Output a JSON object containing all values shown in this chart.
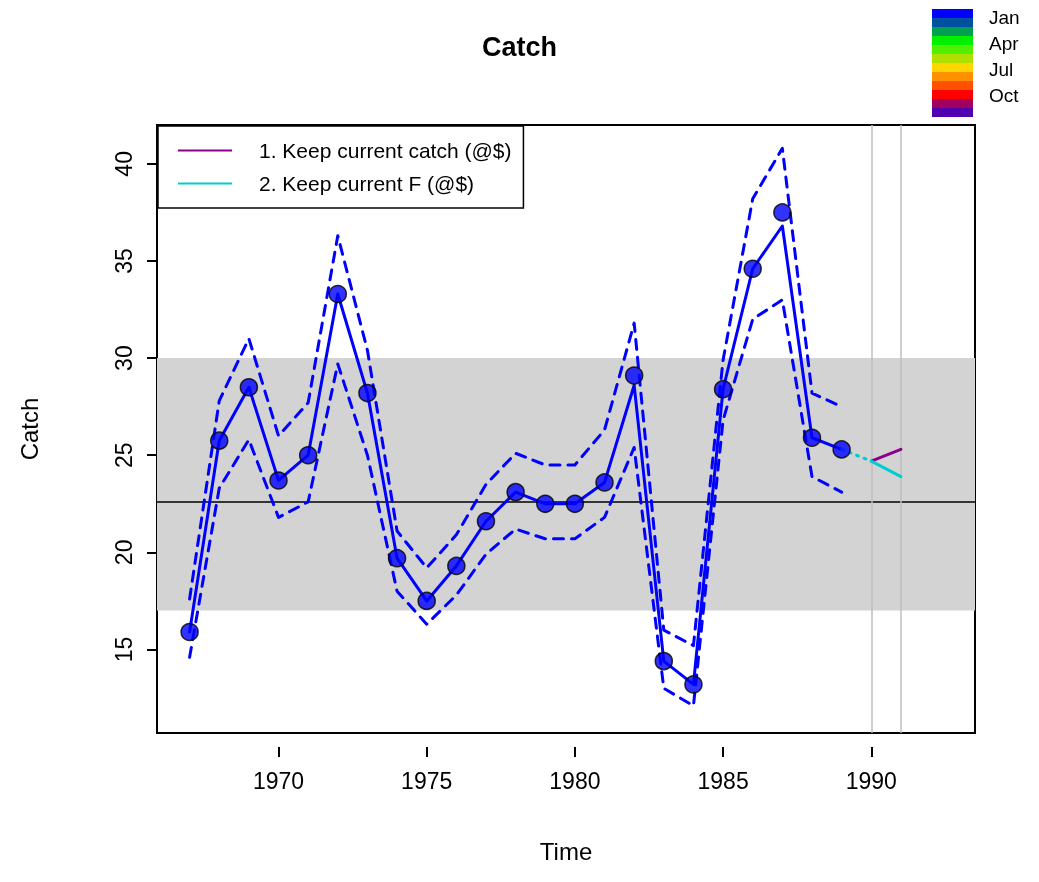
{
  "chart_data": {
    "type": "line",
    "title": "Catch",
    "xlabel": "Time",
    "ylabel": "Catch",
    "annotations": [
      "Jan",
      "Apr",
      "Jul",
      "Oct"
    ],
    "xlim": [
      1965.9,
      1993.5
    ],
    "xticks": [
      1970,
      1975,
      1980,
      1985,
      1990
    ],
    "ylim": [
      10.7,
      42.0
    ],
    "yticks": [
      15,
      20,
      25,
      30,
      35,
      40
    ],
    "grid": false,
    "legend": "top left",
    "bands": [
      {
        "axis": "y",
        "from": 17,
        "to": 30,
        "color": "#d3d3d3"
      }
    ],
    "ref_lines": [
      {
        "axis": "y",
        "value": 22.6,
        "color": "#000000"
      },
      {
        "axis": "x",
        "value": 1990,
        "color": "#bebebe"
      },
      {
        "axis": "x",
        "value": 1991,
        "color": "#bebebe"
      }
    ],
    "series": [
      {
        "color": "#0000ff",
        "line_style": "dashed",
        "marker": "none",
        "x": [
          1967,
          1968,
          1969,
          1970,
          1971,
          1972,
          1973,
          1974,
          1975,
          1976,
          1977,
          1978,
          1979,
          1980,
          1981,
          1982,
          1983,
          1984,
          1985,
          1986,
          1987,
          1988,
          1989
        ],
        "values": [
          17.6,
          27.8,
          31.0,
          26.0,
          27.7,
          36.3,
          30.4,
          21.1,
          19.2,
          20.9,
          23.5,
          25.1,
          24.5,
          24.5,
          26.3,
          31.8,
          16.0,
          15.2,
          29.9,
          38.2,
          40.8,
          28.2,
          27.5
        ]
      },
      {
        "color": "#0000ff",
        "line_style": "dashed",
        "marker": "none",
        "x": [
          1967,
          1968,
          1969,
          1970,
          1971,
          1972,
          1973,
          1974,
          1975,
          1976,
          1977,
          1978,
          1979,
          1980,
          1981,
          1982,
          1983,
          1984,
          1985,
          1986,
          1987,
          1988,
          1989
        ],
        "values": [
          14.6,
          23.3,
          25.8,
          21.8,
          22.6,
          29.7,
          25.0,
          18.0,
          16.3,
          17.8,
          19.9,
          21.2,
          20.7,
          20.7,
          21.8,
          25.4,
          13.0,
          12.1,
          26.8,
          32.0,
          33.0,
          23.9,
          23.1
        ]
      },
      {
        "color": "#0000ff",
        "line_style": "solid",
        "marker": "none",
        "x": [
          1967,
          1968,
          1969,
          1970,
          1971,
          1972,
          1973,
          1974,
          1975,
          1976,
          1977,
          1978,
          1979,
          1980,
          1981,
          1982,
          1983,
          1984,
          1985,
          1986,
          1987,
          1988,
          1989
        ],
        "values": [
          15.9,
          25.75,
          28.5,
          23.7,
          25.0,
          33.3,
          28.2,
          19.7,
          17.5,
          19.3,
          21.6,
          23.1,
          22.5,
          22.5,
          23.6,
          28.6,
          14.4,
          13.2,
          28.4,
          34.6,
          36.8,
          25.9,
          25.3
        ]
      },
      {
        "type": "scatter",
        "color": "#0000ff",
        "marker": "circle",
        "x": [
          1967,
          1968,
          1969,
          1970,
          1971,
          1972,
          1973,
          1974,
          1975,
          1976,
          1977,
          1978,
          1979,
          1980,
          1981,
          1982,
          1983,
          1984,
          1985,
          1986,
          1987,
          1988,
          1989
        ],
        "values": [
          15.9,
          25.75,
          28.5,
          23.7,
          25.0,
          33.3,
          28.2,
          19.7,
          17.5,
          19.3,
          21.6,
          23.1,
          22.5,
          22.5,
          23.6,
          29.1,
          14.4,
          13.2,
          28.4,
          34.6,
          37.5,
          25.9,
          25.3
        ]
      },
      {
        "color": "#00cdcd",
        "line_style": "dotted",
        "marker": "none",
        "x": [
          1989,
          1990
        ],
        "values": [
          25.3,
          24.7
        ]
      },
      {
        "name": "1. Keep current catch (@$)",
        "color": "#8b008b",
        "line_style": "solid",
        "marker": "none",
        "x": [
          1990,
          1991
        ],
        "values": [
          24.7,
          25.3
        ]
      },
      {
        "name": "2. Keep current F (@$)",
        "color": "#00cdcd",
        "line_style": "solid",
        "marker": "none",
        "x": [
          1990,
          1991
        ],
        "values": [
          24.7,
          23.9
        ]
      }
    ]
  }
}
